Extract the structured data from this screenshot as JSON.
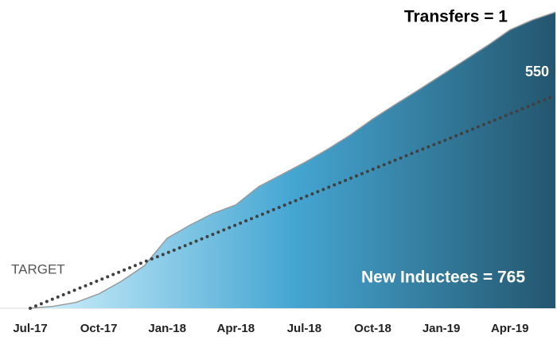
{
  "chart_data": {
    "type": "area",
    "categories": [
      "Jul-17",
      null,
      null,
      "Oct-17",
      null,
      null,
      "Jan-18",
      null,
      null,
      "Apr-18",
      null,
      null,
      "Jul-18",
      null,
      null,
      "Oct-18",
      null,
      null,
      "Jan-19",
      null,
      null,
      "Apr-19",
      null,
      null
    ],
    "series": [
      {
        "name": "New Inductees",
        "color": "#2f7fa6",
        "values": [
          0,
          5,
          15,
          37,
          70,
          110,
          181,
          215,
          245,
          267,
          314,
          345,
          376,
          410,
          447,
          489,
          527,
          564,
          602,
          640,
          678,
          719,
          745,
          765
        ]
      },
      {
        "name": "TARGET",
        "color": "#404040",
        "values": [
          0,
          24,
          48,
          72,
          96,
          120,
          143,
          167,
          191,
          215,
          239,
          263,
          287,
          311,
          335,
          359,
          383,
          407,
          430,
          454,
          478,
          502,
          526,
          550
        ]
      }
    ],
    "gradient": [
      "#d3f2fd",
      "#45a6d2",
      "#24566e"
    ],
    "ylim": [
      0,
      780
    ],
    "annotations": [
      "Transfers = 1",
      "550",
      "New Inductees = 765",
      "TARGET"
    ]
  }
}
